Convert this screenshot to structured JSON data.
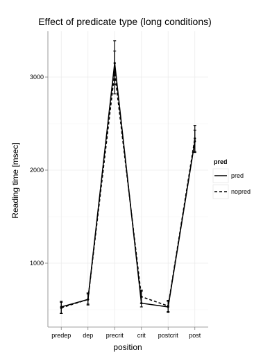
{
  "chart_data": {
    "type": "line",
    "title": "Effect of predicate type (long conditions)",
    "xlabel": "position",
    "ylabel": "Reading time [msec]",
    "categories": [
      "predep",
      "dep",
      "precrit",
      "crit",
      "postcrit",
      "post"
    ],
    "yticks": [
      1000,
      2000,
      3000
    ],
    "ylim": [
      400,
      3450
    ],
    "grid": true,
    "legend": {
      "title": "pred",
      "position": "right",
      "entries": [
        "pred",
        "nopred"
      ]
    },
    "series": [
      {
        "name": "pred",
        "values": [
          530,
          610,
          3150,
          570,
          530,
          2310
        ],
        "error_low": [
          460,
          550,
          2920,
          530,
          470,
          2190
        ],
        "error_high": [
          590,
          680,
          3390,
          700,
          590,
          2430
        ],
        "line_style": "solid"
      },
      {
        "name": "nopred",
        "values": [
          520,
          610,
          3050,
          640,
          540,
          2340
        ],
        "error_low": [
          460,
          560,
          2820,
          570,
          480,
          2200
        ],
        "error_high": [
          580,
          670,
          3280,
          710,
          600,
          2480
        ],
        "line_style": "dashed"
      }
    ],
    "colors": {
      "grid_major": "#ebebeb",
      "grid_minor": "#f5f5f5",
      "line": "#000000"
    }
  }
}
